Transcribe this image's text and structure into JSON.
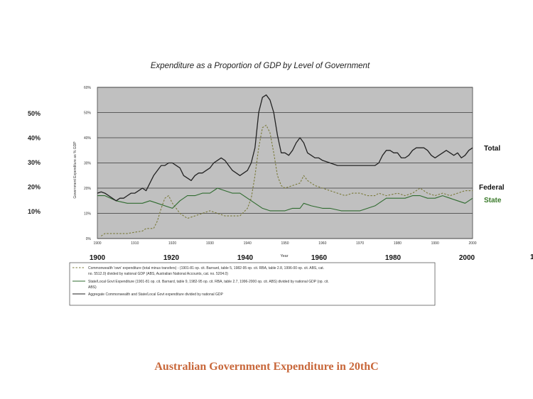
{
  "slide": {
    "footer_title": "Australian Government Expenditure in 20thC",
    "colors": {
      "plot_bg": "#c0c0c0",
      "total": "#222222",
      "federal": "#7a7a3a",
      "state": "#2f6b2f",
      "footer": "#c8673a",
      "state_label": "#3a7a2a"
    }
  },
  "overlay": {
    "left_pct_labels": [
      "50%",
      "40%",
      "30%",
      "20%",
      "10%"
    ],
    "left_pct_values": [
      50,
      40,
      30,
      20,
      10
    ],
    "decade_labels": [
      "1900",
      "1920",
      "1940",
      "1960",
      "1980",
      "2000"
    ],
    "decade_years": [
      1900,
      1920,
      1940,
      1960,
      1980,
      2000
    ],
    "right_labels": {
      "total": "Total",
      "federal": "Federal",
      "state": "State"
    },
    "right_edge_mark": "1"
  },
  "chart_data": {
    "type": "line",
    "title": "Expenditure as a Proportion of GDP by Level of Government",
    "xlabel": "Year",
    "ylabel": "Government Expenditure as % GDP",
    "xlim": [
      1900,
      2000
    ],
    "ylim": [
      0,
      60
    ],
    "x_ticks": [
      "1900",
      "1910",
      "1920",
      "1930",
      "1940",
      "1950",
      "1960",
      "1970",
      "1980",
      "1990",
      "2000"
    ],
    "x_tick_values": [
      1900,
      1910,
      1920,
      1930,
      1940,
      1950,
      1960,
      1970,
      1980,
      1990,
      2000
    ],
    "y_ticks": [
      "0%",
      "10%",
      "20%",
      "30%",
      "40%",
      "50%",
      "60%"
    ],
    "y_tick_values": [
      0,
      10,
      20,
      30,
      40,
      50,
      60
    ],
    "grid": true,
    "series": [
      {
        "key": "federal",
        "style": "dashed",
        "color": "#7a7a3a",
        "x": [
          1901,
          1902,
          1905,
          1908,
          1910,
          1912,
          1913,
          1915,
          1916,
          1917,
          1918,
          1919,
          1920,
          1922,
          1924,
          1926,
          1928,
          1930,
          1932,
          1934,
          1936,
          1938,
          1940,
          1941,
          1942,
          1943,
          1944,
          1945,
          1946,
          1947,
          1948,
          1949,
          1950,
          1952,
          1954,
          1955,
          1956,
          1958,
          1960,
          1962,
          1964,
          1966,
          1968,
          1970,
          1972,
          1974,
          1975,
          1977,
          1980,
          1982,
          1984,
          1986,
          1988,
          1990,
          1992,
          1994,
          1996,
          1998,
          2000
        ],
        "y": [
          1,
          2,
          2,
          2,
          2.5,
          3,
          4,
          4,
          7,
          12,
          16,
          17,
          14,
          10,
          8,
          9,
          10,
          11,
          10,
          9,
          9,
          9,
          12,
          16,
          25,
          36,
          44,
          45,
          42,
          34,
          25,
          21,
          20,
          21,
          22,
          25,
          23,
          21,
          20,
          19,
          18,
          17,
          18,
          18,
          17,
          17,
          18,
          17,
          18,
          17,
          18,
          20,
          18,
          17,
          18,
          17,
          18,
          19,
          19
        ]
      },
      {
        "key": "state",
        "style": "solid",
        "color": "#2f6b2f",
        "x": [
          1900,
          1902,
          1905,
          1908,
          1910,
          1912,
          1914,
          1916,
          1918,
          1920,
          1922,
          1924,
          1926,
          1928,
          1930,
          1932,
          1934,
          1936,
          1938,
          1940,
          1942,
          1944,
          1946,
          1948,
          1950,
          1952,
          1954,
          1955,
          1957,
          1960,
          1962,
          1965,
          1968,
          1970,
          1972,
          1974,
          1975,
          1977,
          1980,
          1982,
          1984,
          1986,
          1988,
          1990,
          1992,
          1994,
          1996,
          1998,
          2000
        ],
        "y": [
          17,
          17,
          15,
          14,
          14,
          14,
          15,
          14,
          13,
          12,
          15,
          17,
          17,
          18,
          18,
          20,
          19,
          18,
          18,
          16,
          14,
          12,
          11,
          11,
          11,
          12,
          12,
          14,
          13,
          12,
          12,
          11,
          11,
          11,
          12,
          13,
          14,
          16,
          16,
          16,
          17,
          17,
          16,
          16,
          17,
          16,
          15,
          14,
          16
        ]
      },
      {
        "key": "total",
        "style": "solid",
        "color": "#222222",
        "x": [
          1900,
          1901,
          1902,
          1903,
          1904,
          1905,
          1906,
          1907,
          1908,
          1909,
          1910,
          1911,
          1912,
          1913,
          1914,
          1915,
          1916,
          1917,
          1918,
          1919,
          1920,
          1921,
          1922,
          1923,
          1924,
          1925,
          1926,
          1927,
          1928,
          1929,
          1930,
          1931,
          1932,
          1933,
          1934,
          1935,
          1936,
          1937,
          1938,
          1939,
          1940,
          1941,
          1942,
          1943,
          1944,
          1945,
          1946,
          1947,
          1948,
          1949,
          1950,
          1951,
          1952,
          1953,
          1954,
          1955,
          1956,
          1957,
          1958,
          1959,
          1960,
          1962,
          1964,
          1966,
          1968,
          1970,
          1972,
          1974,
          1975,
          1976,
          1977,
          1978,
          1979,
          1980,
          1981,
          1982,
          1983,
          1984,
          1985,
          1986,
          1987,
          1988,
          1989,
          1990,
          1991,
          1992,
          1993,
          1994,
          1995,
          1996,
          1997,
          1998,
          1999,
          2000
        ],
        "y": [
          18,
          18.5,
          18,
          17,
          16,
          15,
          16,
          16,
          17,
          18,
          18,
          19,
          20,
          19,
          22,
          25,
          27,
          29,
          29,
          30,
          30,
          29,
          28,
          25,
          24,
          23,
          25,
          26,
          26,
          27,
          28,
          30,
          31,
          32,
          31,
          29,
          27,
          26,
          25,
          26,
          27,
          30,
          36,
          50,
          56,
          57,
          55,
          50,
          41,
          34,
          34,
          33,
          35,
          38,
          40,
          38,
          34,
          33,
          32,
          32,
          31,
          30,
          29,
          29,
          29,
          29,
          29,
          29,
          30,
          33,
          35,
          35,
          34,
          34,
          32,
          32,
          33,
          35,
          36,
          36,
          36,
          35,
          33,
          32,
          33,
          34,
          35,
          34,
          33,
          34,
          32,
          33,
          35,
          36
        ]
      }
    ],
    "legend": [
      "Commonwealth 'own' expenditure (total minus transfers) - (1901-81 op. cit. Barnard, table 5, 1982-95 op. cit. RBA, table 2.8, 1996-00 op. cit. ABS, cat. no. 5512.0) divided by national GDP (ABS, Australian National Accounts, cat. no. 5204.0)",
      "State/Local Govt Expenditure (1901-81 op. cit. Barnard, table 9, 1982-95 op. cit. RBA, table 2.7, 1996-2000 op. cit. ABS) divided by national GDP (op. cit. ABS)",
      "Aggregate Commonwealth and State/Local Govt expenditure divided by national GDP"
    ],
    "legend_position": "bottom"
  }
}
